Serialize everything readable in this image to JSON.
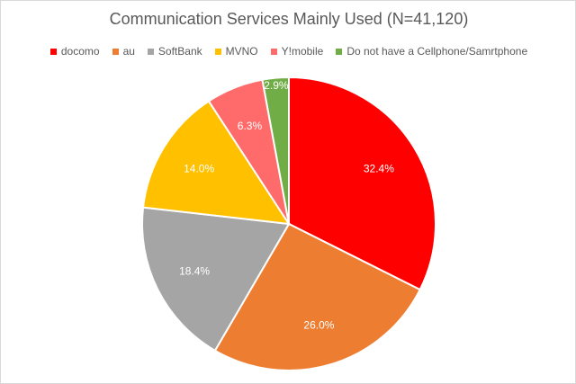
{
  "chart_data": {
    "type": "pie",
    "title": "Communication Services Mainly Used (N=41,120)",
    "legend_position": "top",
    "categories": [
      "docomo",
      "au",
      "SoftBank",
      "MVNO",
      "Y!mobile",
      "Do not have a Cellphone/Samrtphone"
    ],
    "values": [
      32.4,
      26.0,
      18.4,
      14.0,
      6.3,
      2.9
    ],
    "labels": [
      "32.4%",
      "26.0%",
      "18.4%",
      "14.0%",
      "6.3%",
      "2.9%"
    ],
    "colors": [
      "#FF0000",
      "#ED7D31",
      "#A5A5A5",
      "#FFC000",
      "#FF6B6B",
      "#70AD47"
    ],
    "start_angle": "top, clockwise"
  }
}
